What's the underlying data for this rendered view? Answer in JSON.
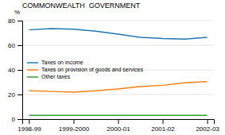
{
  "chart_data": {
    "type": "line",
    "title": "COMMONWEALTH  GOVERNMENT",
    "ylabel": "%",
    "x": [
      0,
      0.5,
      1,
      1.5,
      2,
      2.5,
      3,
      3.5,
      4
    ],
    "xlim": [
      -0.15,
      4.15
    ],
    "xticks": [
      {
        "value": 0,
        "label": "1998-99"
      },
      {
        "value": 1,
        "label": "1999-2000"
      },
      {
        "value": 2,
        "label": "2000-01"
      },
      {
        "value": 3,
        "label": "2001-02"
      },
      {
        "value": 4,
        "label": "2002-03"
      }
    ],
    "ylim": [
      0,
      80
    ],
    "yticks": [
      0,
      20,
      40,
      60,
      80
    ],
    "grid": true,
    "legend": "left",
    "series": [
      {
        "name": "Taxes on income",
        "values": [
          72.5,
          73.5,
          73.0,
          71.5,
          69.0,
          66.5,
          65.5,
          65.0,
          66.5
        ]
      },
      {
        "name": "Taxes on provision of goods and services",
        "values": [
          23.0,
          22.5,
          22.0,
          23.0,
          24.5,
          26.5,
          27.5,
          29.5,
          30.5
        ]
      },
      {
        "name": "Other taxes",
        "values": [
          3.0,
          3.0,
          3.0,
          3.0,
          3.0,
          3.0,
          3.0,
          3.0,
          3.0
        ]
      }
    ]
  }
}
